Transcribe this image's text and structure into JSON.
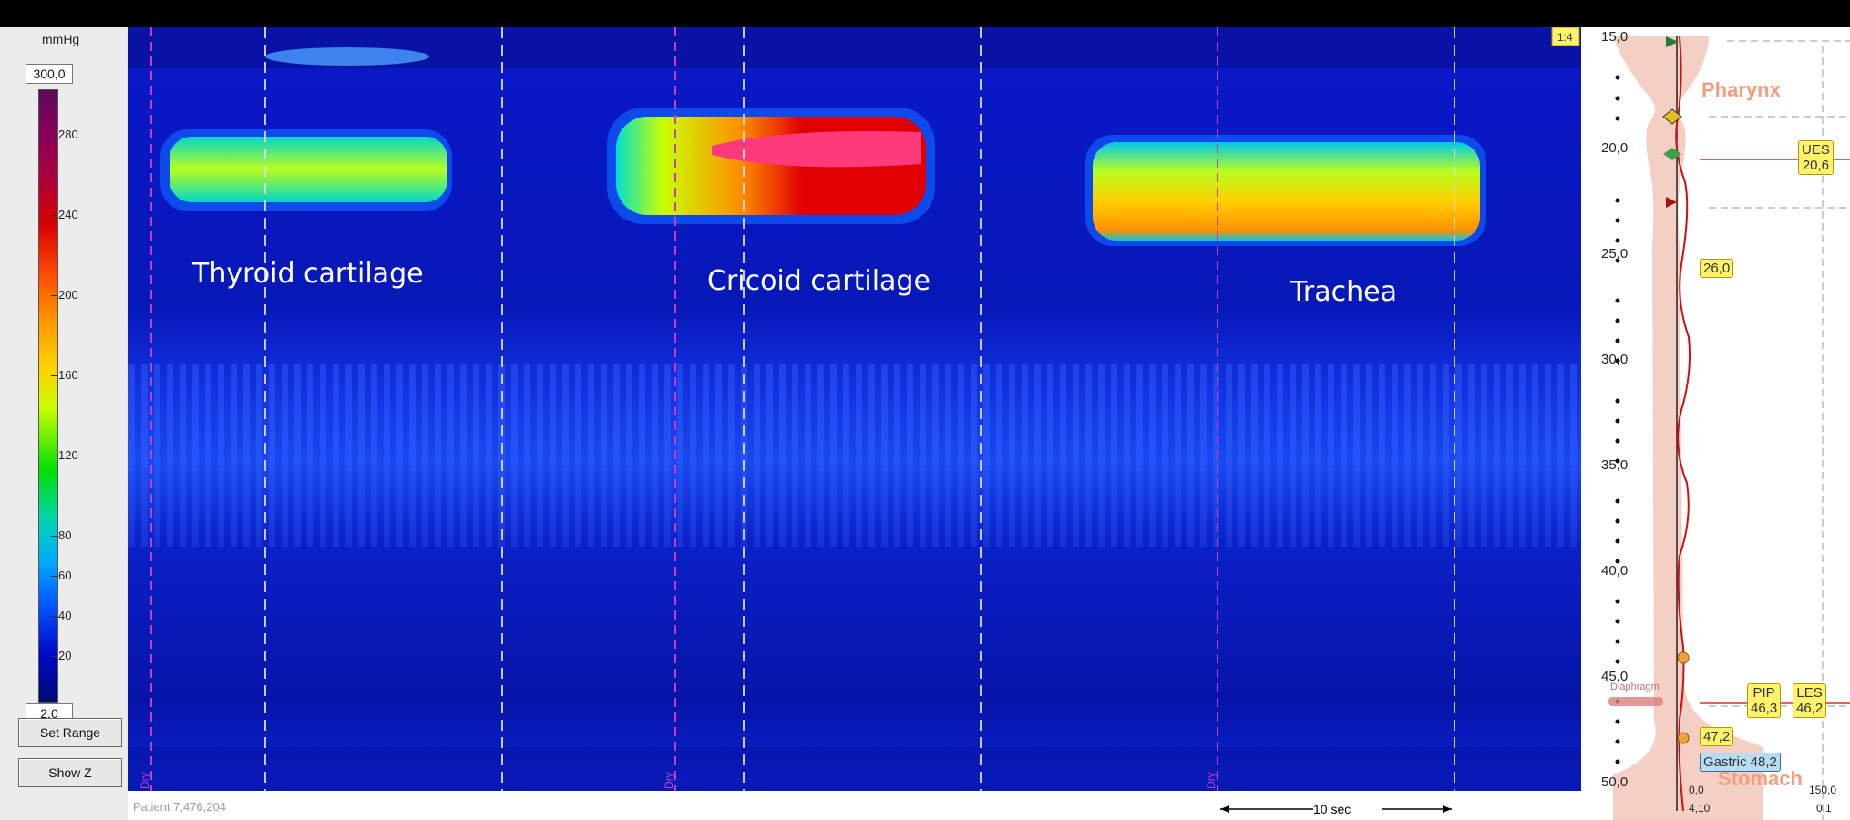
{
  "colorbar": {
    "unit": "mmHg",
    "max_value": "300,0",
    "min_value": "2,0",
    "ticks": [
      "280",
      "240",
      "200",
      "160",
      "120",
      "80",
      "60",
      "40",
      "20"
    ]
  },
  "buttons": {
    "set_range": "Set Range",
    "show_z": "Show Z"
  },
  "plot": {
    "annotations": {
      "thyroid": "Thyroid cartilage",
      "cricoid": "Cricoid cartilage",
      "trachea": "Trachea"
    },
    "patient_label": "Patient 7,476,204",
    "time_scale": "10 sec",
    "marker_labels": [
      "Dry",
      "Dry",
      "Dry"
    ],
    "zoom_badge": "1:4"
  },
  "depth_scale": {
    "labels": [
      "15,0",
      "20,0",
      "25,0",
      "30,0",
      "35,0",
      "40,0",
      "45,0",
      "50,0"
    ]
  },
  "anatomy": {
    "pharynx": "Pharynx",
    "stomach": "Stomach",
    "diaphragm": "Diaphragm",
    "tags": {
      "ues": [
        "UES",
        "20,6"
      ],
      "t26": "26,0",
      "pip": [
        "PIP",
        "46,3"
      ],
      "les": [
        "LES",
        "46,2"
      ],
      "t47": "47,2",
      "gastric": "Gastric 48,2"
    },
    "bottom": {
      "left": "0,0",
      "left2": "4,10",
      "right": "150,0",
      "right2": "0,1"
    }
  },
  "colors": {
    "trace": "#cc1111",
    "esophagus": "#f4cfc4",
    "tag_yellow": "#fff36b",
    "tag_blue": "#b9dcf5"
  }
}
